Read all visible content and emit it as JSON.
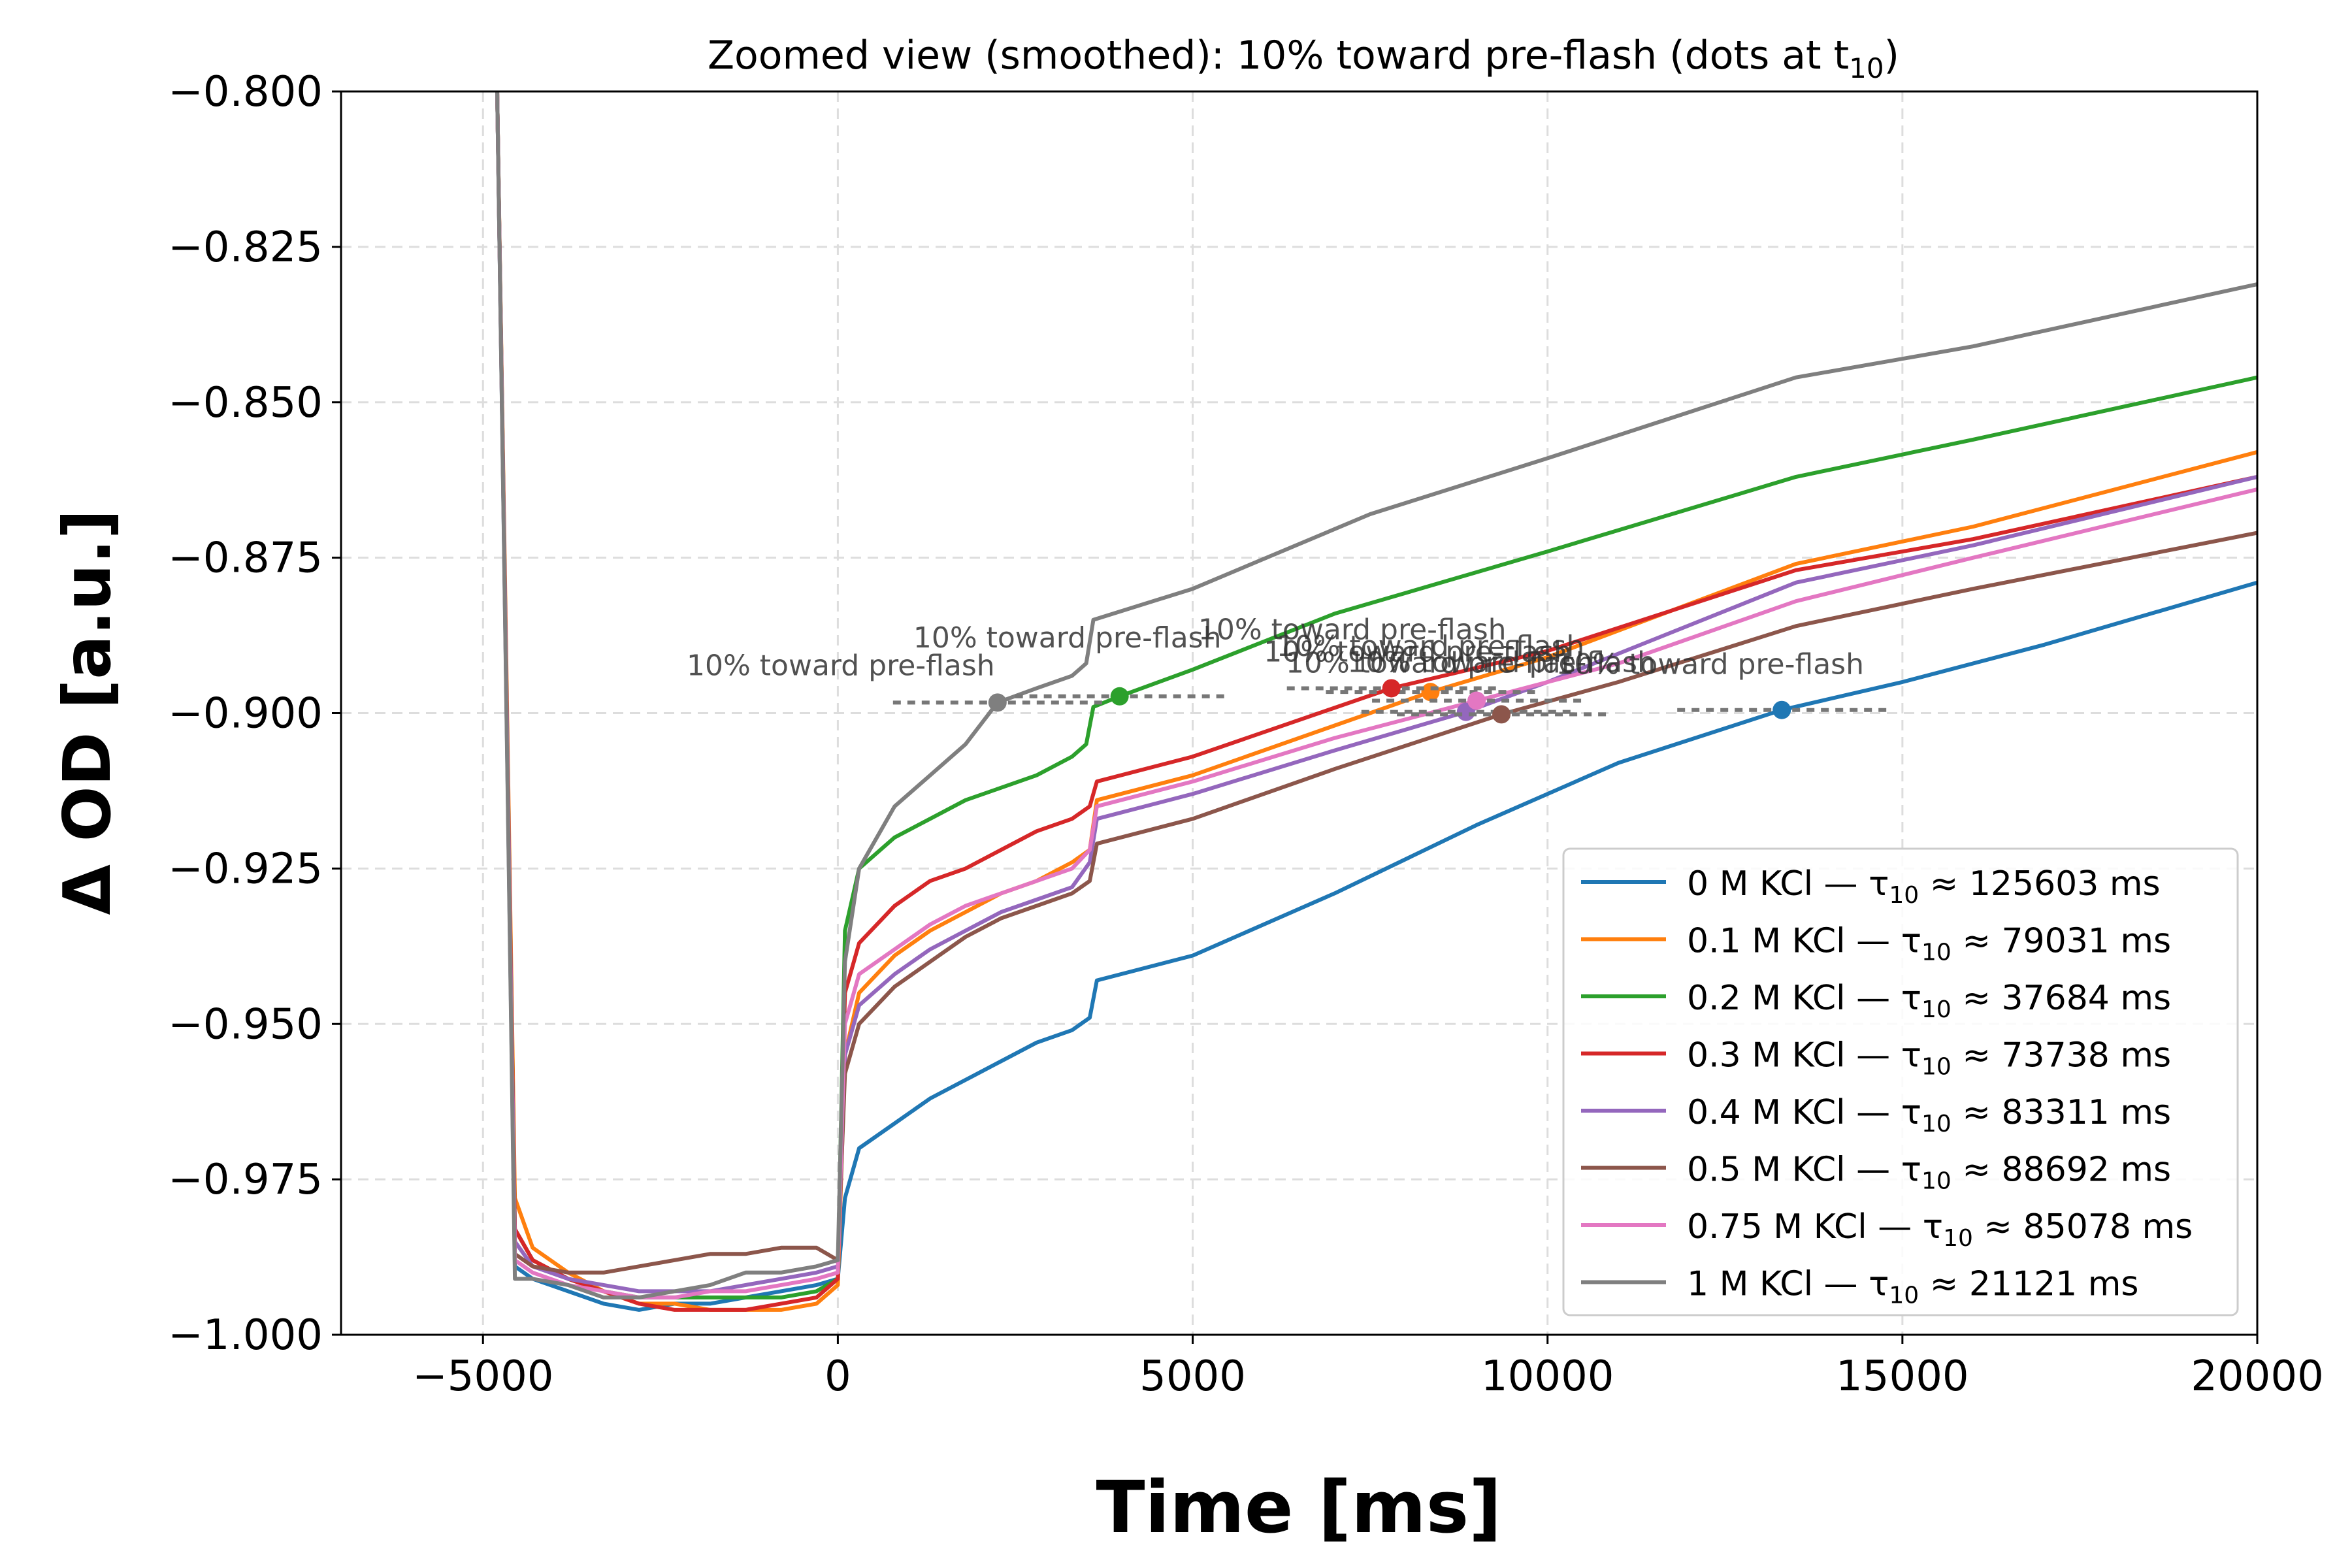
{
  "chart_data": {
    "type": "line",
    "title": "Zoomed view (smoothed): 10% toward pre-flash (dots at t",
    "title_sub": "10",
    "title_suffix": ")",
    "xlabel": "Time [ms]",
    "ylabel": "Δ OD [a.u.]",
    "xlim": [
      -7000,
      20000
    ],
    "ylim": [
      -1.0,
      -0.8
    ],
    "x_ticks": [
      -5000,
      0,
      5000,
      10000,
      15000,
      20000
    ],
    "x_tick_labels": [
      "−5000",
      "0",
      "5000",
      "10000",
      "15000",
      "20000"
    ],
    "y_ticks": [
      -1.0,
      -0.975,
      -0.95,
      -0.925,
      -0.9,
      -0.875,
      -0.85,
      -0.825,
      -0.8
    ],
    "y_tick_labels": [
      "−1.000",
      "−0.975",
      "−0.950",
      "−0.925",
      "−0.900",
      "−0.875",
      "−0.850",
      "−0.825",
      "−0.800"
    ],
    "grid": true,
    "legend_position": "lower-right",
    "annotation_text": "10% toward pre-flash",
    "legend_mid": " — τ",
    "legend_sub": "10",
    "legend_approx": " ≈ ",
    "series": [
      {
        "name": "0 M KCl",
        "tau10": "125603 ms",
        "color": "#1f77b4",
        "t10": 13300,
        "y10": -0.8995,
        "x": [
          -4800,
          -4550,
          -4300,
          -3800,
          -3300,
          -2800,
          -2300,
          -1800,
          -1300,
          -800,
          -300,
          0,
          100,
          300,
          800,
          1300,
          1800,
          2300,
          2800,
          3300,
          3550,
          3650,
          5000,
          7000,
          9000,
          11000,
          13300,
          15000,
          17000,
          20000
        ],
        "y": [
          -0.8,
          -0.989,
          -0.991,
          -0.993,
          -0.995,
          -0.996,
          -0.995,
          -0.995,
          -0.994,
          -0.993,
          -0.992,
          -0.991,
          -0.978,
          -0.97,
          -0.966,
          -0.962,
          -0.959,
          -0.956,
          -0.953,
          -0.951,
          -0.949,
          -0.943,
          -0.939,
          -0.929,
          -0.918,
          -0.908,
          -0.8995,
          -0.895,
          -0.889,
          -0.879
        ]
      },
      {
        "name": "0.1 M KCl",
        "tau10": "79031 ms",
        "color": "#ff7f0e",
        "t10": 8350,
        "y10": -0.8966,
        "x": [
          -4800,
          -4550,
          -4300,
          -3800,
          -3300,
          -2800,
          -2300,
          -1800,
          -1300,
          -800,
          -300,
          0,
          100,
          300,
          800,
          1300,
          1800,
          2300,
          2800,
          3300,
          3550,
          3650,
          5000,
          7000,
          8350,
          10000,
          13500,
          16000,
          20000
        ],
        "y": [
          -0.8,
          -0.978,
          -0.986,
          -0.99,
          -0.993,
          -0.995,
          -0.995,
          -0.996,
          -0.996,
          -0.996,
          -0.995,
          -0.992,
          -0.955,
          -0.945,
          -0.939,
          -0.935,
          -0.932,
          -0.929,
          -0.927,
          -0.924,
          -0.922,
          -0.914,
          -0.91,
          -0.902,
          -0.8966,
          -0.891,
          -0.876,
          -0.87,
          -0.858
        ]
      },
      {
        "name": "0.2 M KCl",
        "tau10": "37684 ms",
        "color": "#2ca02c",
        "t10": 3970,
        "y10": -0.8973,
        "x": [
          -4800,
          -4550,
          -4300,
          -3800,
          -3300,
          -2800,
          -2300,
          -1800,
          -1300,
          -800,
          -300,
          0,
          100,
          300,
          800,
          1300,
          1800,
          2300,
          2800,
          3300,
          3500,
          3600,
          3970,
          5000,
          7000,
          10000,
          13500,
          16000,
          20000
        ],
        "y": [
          -0.8,
          -0.983,
          -0.988,
          -0.991,
          -0.993,
          -0.994,
          -0.994,
          -0.994,
          -0.994,
          -0.994,
          -0.993,
          -0.991,
          -0.935,
          -0.925,
          -0.92,
          -0.917,
          -0.914,
          -0.912,
          -0.91,
          -0.907,
          -0.905,
          -0.899,
          -0.8973,
          -0.893,
          -0.884,
          -0.874,
          -0.862,
          -0.856,
          -0.846
        ]
      },
      {
        "name": "0.3 M KCl",
        "tau10": "73738 ms",
        "color": "#d62728",
        "t10": 7800,
        "y10": -0.896,
        "x": [
          -4800,
          -4550,
          -4300,
          -3800,
          -3300,
          -2800,
          -2300,
          -1800,
          -1300,
          -800,
          -300,
          0,
          100,
          300,
          800,
          1300,
          1800,
          2300,
          2800,
          3300,
          3550,
          3650,
          5000,
          7800,
          10000,
          13500,
          16000,
          20000
        ],
        "y": [
          -0.8,
          -0.983,
          -0.988,
          -0.991,
          -0.993,
          -0.995,
          -0.996,
          -0.996,
          -0.996,
          -0.995,
          -0.994,
          -0.991,
          -0.945,
          -0.937,
          -0.931,
          -0.927,
          -0.925,
          -0.922,
          -0.919,
          -0.917,
          -0.915,
          -0.911,
          -0.907,
          -0.896,
          -0.89,
          -0.877,
          -0.872,
          -0.862
        ]
      },
      {
        "name": "0.4 M KCl",
        "tau10": "83311 ms",
        "color": "#9467bd",
        "t10": 8850,
        "y10": -0.8998,
        "x": [
          -4800,
          -4550,
          -4300,
          -3800,
          -3300,
          -2800,
          -2300,
          -1800,
          -1300,
          -800,
          -300,
          0,
          100,
          300,
          800,
          1300,
          1800,
          2300,
          2800,
          3300,
          3550,
          3650,
          5000,
          7000,
          8850,
          10000,
          13500,
          16000,
          20000
        ],
        "y": [
          -0.8,
          -0.985,
          -0.989,
          -0.991,
          -0.992,
          -0.993,
          -0.993,
          -0.993,
          -0.992,
          -0.991,
          -0.99,
          -0.989,
          -0.955,
          -0.947,
          -0.942,
          -0.938,
          -0.935,
          -0.932,
          -0.93,
          -0.928,
          -0.924,
          -0.917,
          -0.913,
          -0.906,
          -0.8998,
          -0.895,
          -0.879,
          -0.873,
          -0.862
        ]
      },
      {
        "name": "0.5 M KCl",
        "tau10": "88692 ms",
        "color": "#8c564b",
        "t10": 9350,
        "y10": -0.9002,
        "x": [
          -4800,
          -4550,
          -4300,
          -3800,
          -3300,
          -2800,
          -2300,
          -1800,
          -1300,
          -800,
          -300,
          0,
          100,
          300,
          800,
          1300,
          1800,
          2300,
          2800,
          3300,
          3550,
          3650,
          5000,
          7000,
          9350,
          11000,
          13500,
          16000,
          20000
        ],
        "y": [
          -0.8,
          -0.987,
          -0.989,
          -0.99,
          -0.99,
          -0.989,
          -0.988,
          -0.987,
          -0.987,
          -0.986,
          -0.986,
          -0.988,
          -0.958,
          -0.95,
          -0.944,
          -0.94,
          -0.936,
          -0.933,
          -0.931,
          -0.929,
          -0.927,
          -0.921,
          -0.917,
          -0.909,
          -0.9002,
          -0.895,
          -0.886,
          -0.88,
          -0.871
        ]
      },
      {
        "name": "0.75 M KCl",
        "tau10": "85078 ms",
        "color": "#e377c2",
        "t10": 9000,
        "y10": -0.898,
        "x": [
          -4800,
          -4550,
          -4300,
          -3800,
          -3300,
          -2800,
          -2300,
          -1800,
          -1300,
          -800,
          -300,
          0,
          100,
          300,
          800,
          1300,
          1800,
          2300,
          2800,
          3300,
          3550,
          3650,
          5000,
          7000,
          9000,
          11000,
          13500,
          16000,
          20000
        ],
        "y": [
          -0.8,
          -0.988,
          -0.99,
          -0.992,
          -0.993,
          -0.994,
          -0.994,
          -0.993,
          -0.993,
          -0.992,
          -0.991,
          -0.99,
          -0.95,
          -0.942,
          -0.938,
          -0.934,
          -0.931,
          -0.929,
          -0.927,
          -0.925,
          -0.922,
          -0.915,
          -0.911,
          -0.904,
          -0.898,
          -0.892,
          -0.882,
          -0.875,
          -0.864
        ]
      },
      {
        "name": "1 M KCl",
        "tau10": "21121 ms",
        "color": "#7f7f7f",
        "t10": 2250,
        "y10": -0.8983,
        "x": [
          -4800,
          -4550,
          -4300,
          -3800,
          -3300,
          -2800,
          -2300,
          -1800,
          -1300,
          -800,
          -300,
          0,
          100,
          300,
          800,
          1300,
          1800,
          2250,
          2800,
          3300,
          3500,
          3600,
          5000,
          7500,
          10000,
          13500,
          16000,
          20000
        ],
        "y": [
          -0.8,
          -0.991,
          -0.991,
          -0.992,
          -0.994,
          -0.994,
          -0.993,
          -0.992,
          -0.99,
          -0.99,
          -0.989,
          -0.988,
          -0.94,
          -0.925,
          -0.915,
          -0.91,
          -0.905,
          -0.8983,
          -0.896,
          -0.894,
          -0.892,
          -0.885,
          -0.88,
          -0.868,
          -0.859,
          -0.846,
          -0.841,
          -0.831
        ]
      }
    ]
  }
}
